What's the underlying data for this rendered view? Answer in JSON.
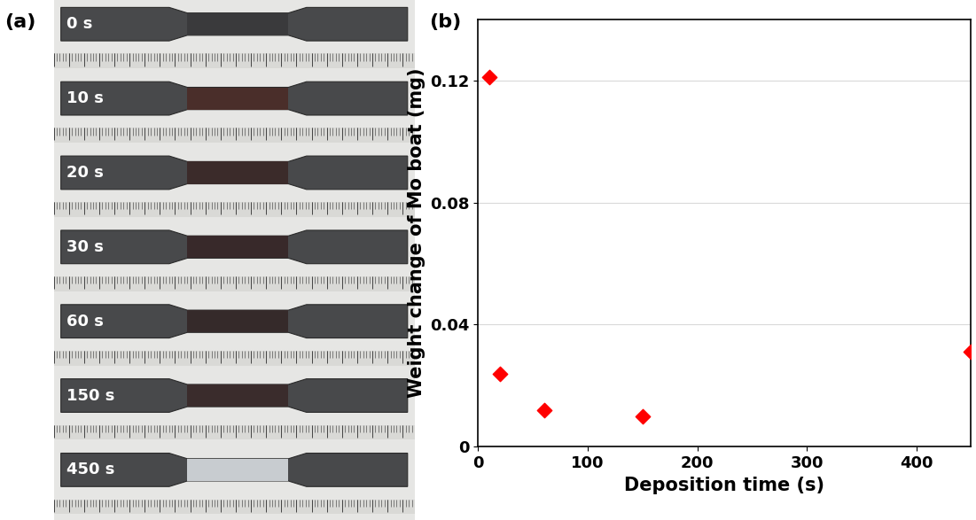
{
  "photo": {
    "panel_label": "(a)",
    "samples": [
      "0 s",
      "10 s",
      "20 s",
      "30 s",
      "60 s",
      "150 s",
      "450 s"
    ]
  },
  "chart_data": {
    "type": "scatter",
    "panel_label": "(b)",
    "x_label": "Deposition time (s)",
    "y_label": "Weight change of Mo boat (mg)",
    "x": [
      10,
      20,
      60,
      150,
      450
    ],
    "values": [
      0.121,
      0.024,
      0.012,
      0.01,
      0.031
    ],
    "color": "#ff0000",
    "marker": "diamond",
    "xlim": [
      0,
      450
    ],
    "ylim": [
      0,
      0.14
    ],
    "xticks": [
      0,
      100,
      200,
      300,
      400
    ],
    "yticks": [
      0,
      0.04,
      0.08,
      0.12
    ],
    "grid": true
  }
}
